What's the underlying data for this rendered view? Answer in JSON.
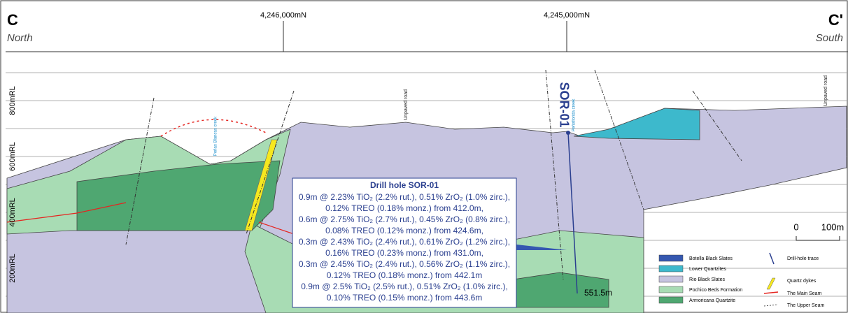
{
  "header": {
    "left_label": "C",
    "left_direction": "North",
    "right_label": "C'",
    "right_direction": "South",
    "northings": [
      "4,246,000mN",
      "4,245,000mN"
    ]
  },
  "elevations": [
    "800mRL",
    "600mRL",
    "400mRL",
    "200mRL"
  ],
  "annotations": {
    "creeks": [
      "Peñas Blancas creek",
      "Peñaflorida creek"
    ],
    "roads": [
      "Unpaved road",
      "Unpaved road"
    ],
    "drill_hole": "SOR-01",
    "depth": "551.5m"
  },
  "scale": {
    "zero": "0",
    "length": "100m"
  },
  "drill_box": {
    "title": "Drill hole SOR-01",
    "lines": [
      "0.9m @ 2.23% TiO₂ (2.2% rut.), 0.51% ZrO₂ (1.0% zirc.),",
      "0.12% TREO (0.18% monz.) from 412.0m,",
      "0.6m @ 2.75% TiO₂ (2.7% rut.), 0.45% ZrO₂ (0.8% zirc.),",
      "0.08% TREO (0.12% monz.) from 424.6m,",
      "0.3m @ 2.43% TiO₂ (2.4% rut.), 0.61% ZrO₂ (1.2% zirc.),",
      "0.16% TREO (0.23% monz.) from 431.0m,",
      "0.3m @ 2.45% TiO₂ (2.4% rut.), 0.56% ZrO₂ (1.1% zirc.),",
      "0.12% TREO (0.18% monz.) from 442.1m",
      "0.9m @ 2.5% TiO₂ (2.5% rut.), 0.51% ZrO₂ (1.0% zirc.),",
      "0.10% TREO (0.15% monz.) from 443.6m"
    ]
  },
  "legend": {
    "units": [
      "Botella Black Slates",
      "Lower Quartzites",
      "Rio Black Slates",
      "Pochico Beds Formation",
      "Armoricana Quartzite"
    ],
    "symbols": [
      "Drill-hole trace",
      "Quartz dykes",
      "The Main Seam",
      "The Upper Seam"
    ]
  }
}
